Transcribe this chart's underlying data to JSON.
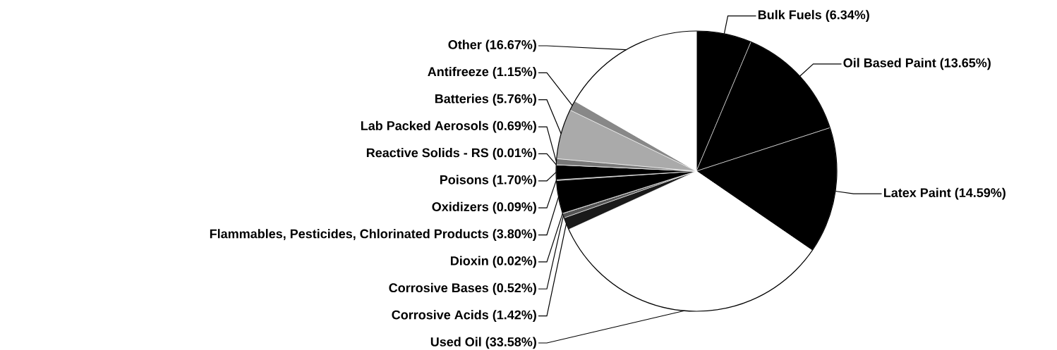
{
  "chart_data": {
    "type": "pie",
    "categories": [
      "Bulk Fuels",
      "Oil Based Paint",
      "Latex Paint",
      "Used Oil",
      "Corrosive Acids",
      "Corrosive Bases",
      "Dioxin",
      "Flammables, Pesticides, Chlorinated Products",
      "Oxidizers",
      "Poisons",
      "Reactive Solids - RS",
      "Lab Packed Aerosols",
      "Batteries",
      "Antifreeze",
      "Other"
    ],
    "values": [
      6.34,
      13.65,
      14.59,
      33.58,
      1.42,
      0.52,
      0.02,
      3.8,
      0.09,
      1.7,
      0.01,
      0.69,
      5.76,
      1.15,
      16.67
    ],
    "value_labels": [
      "(6.34%)",
      "(13.65%)",
      "(14.59%)",
      "(33.58%)",
      "(1.42%)",
      "(0.52%)",
      "(0.02%)",
      "(3.80%)",
      "(0.09%)",
      "(1.70%)",
      "(0.01%)",
      "(0.69%)",
      "(5.76%)",
      "(1.15%)",
      "(16.67%)"
    ],
    "colors": [
      "#000000",
      "#000000",
      "#000000",
      "#ffffff",
      "#1a1a1a",
      "#555555",
      "#444444",
      "#000000",
      "#333333",
      "#000000",
      "#000000",
      "#777777",
      "#aaaaaa",
      "#888888",
      "#ffffff"
    ]
  }
}
